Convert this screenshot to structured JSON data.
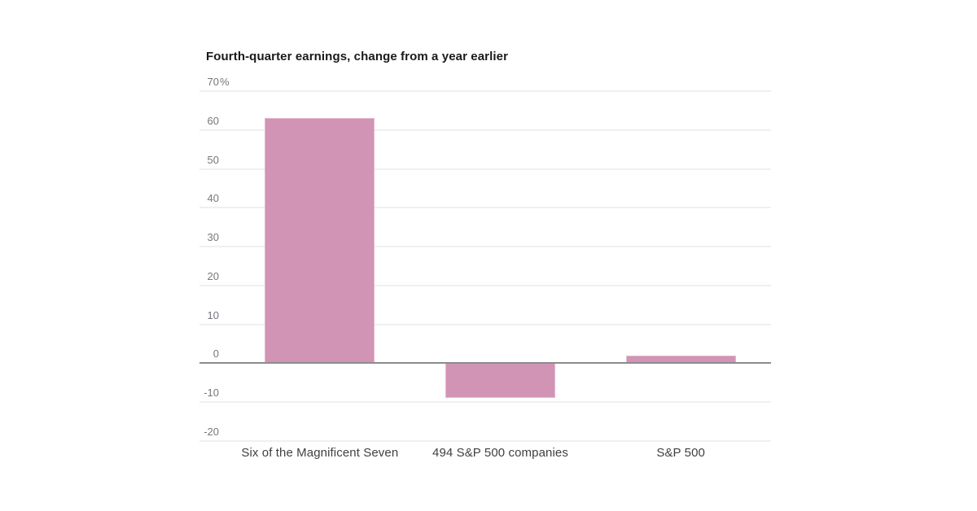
{
  "chart": {
    "title": "Fourth-quarter earnings, change from a year earlier"
  },
  "chart_data": {
    "type": "bar",
    "title": "Fourth-quarter earnings, change from a year earlier",
    "categories": [
      "Six of the Magnificent Seven",
      "494 S&P 500 companies",
      "S&P 500"
    ],
    "values": [
      63,
      -9,
      2
    ],
    "xlabel": "",
    "ylabel": "",
    "unit_suffix": "%",
    "ylim": [
      -20,
      70
    ],
    "yticks": [
      70,
      60,
      50,
      40,
      30,
      20,
      10,
      0,
      -10,
      -20
    ],
    "ytick_top_label": "70%",
    "grid": true,
    "legend": false,
    "colors": {
      "bar_fill": "#d194b4",
      "bar_border": "#e4b9ce",
      "gridline": "#f0f0f0",
      "zero_line": "#8c8c8c",
      "title_text": "#1a1a1a",
      "tick_text": "#76767e",
      "category_text": "#404040",
      "background": "#ffffff"
    }
  }
}
